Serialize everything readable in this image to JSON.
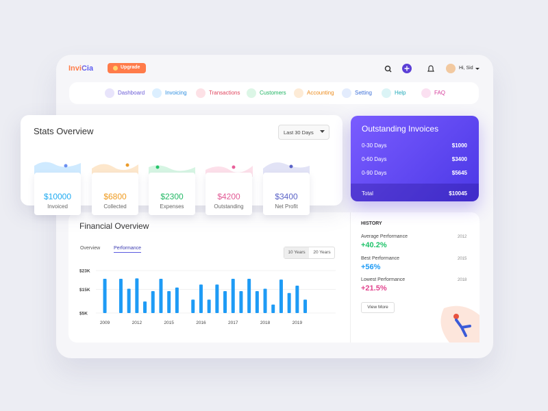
{
  "header": {
    "logo": "InviCia",
    "upgrade": "Upgrade",
    "greeting": "Hi, Sid"
  },
  "nav": [
    "Dashboard",
    "Invoicing",
    "Transactions",
    "Customers",
    "Accounting",
    "Setting",
    "Help",
    "FAQ"
  ],
  "stats_overview": {
    "title": "Stats Overview",
    "period": "Last 30 Days",
    "items": [
      {
        "value": "$10000",
        "label": "Invoiced"
      },
      {
        "value": "$6800",
        "label": "Collected"
      },
      {
        "value": "$2300",
        "label": "Expenses"
      },
      {
        "value": "$4200",
        "label": "Outstanding"
      },
      {
        "value": "$3400",
        "label": "Net Profit"
      }
    ]
  },
  "outstanding_invoices": {
    "title": "Outstanding Invoices",
    "rows": [
      [
        "0-30 Days",
        "$1000"
      ],
      [
        "0-60 Days",
        "$3400"
      ],
      [
        "0-90 Days",
        "$5645"
      ]
    ],
    "total": [
      "Total",
      "$10045"
    ]
  },
  "financial_overview": {
    "title": "Financial Overview",
    "tabs": [
      "Overview",
      "Performance"
    ],
    "ranges": [
      "10 Years",
      "20 Years"
    ]
  },
  "chart_data": {
    "type": "bar",
    "categories": [
      "2009",
      null,
      null,
      null,
      "2012",
      null,
      null,
      null,
      "2015",
      null,
      null,
      null,
      "2016",
      null,
      null,
      null,
      "2017",
      null,
      null,
      null,
      "2018",
      null,
      null,
      null,
      "2019",
      null
    ],
    "values": [
      19500,
      null,
      19500,
      15300,
      19700,
      9900,
      14300,
      19500,
      14300,
      15800,
      null,
      10700,
      17100,
      10700,
      17100,
      14300,
      19500,
      14300,
      19500,
      14300,
      15300,
      8600,
      19200,
      13500,
      16600,
      10700
    ],
    "color": "#1e9bf5",
    "ylim": [
      5000,
      23000
    ],
    "yticks": [
      {
        "value": 23000,
        "label": "$23K"
      },
      {
        "value": 15000,
        "label": "$15K"
      },
      {
        "value": 5000,
        "label": "$5K"
      }
    ],
    "grid": true
  },
  "history": {
    "title": "HISTORY",
    "items": [
      {
        "label": "Average Performance",
        "year": "2012",
        "value": "+40.2%"
      },
      {
        "label": "Best Performance",
        "year": "2015",
        "value": "+56%"
      },
      {
        "label": "Lowest Performance",
        "year": "2018",
        "value": "+21.5%"
      }
    ],
    "button": "View More"
  }
}
